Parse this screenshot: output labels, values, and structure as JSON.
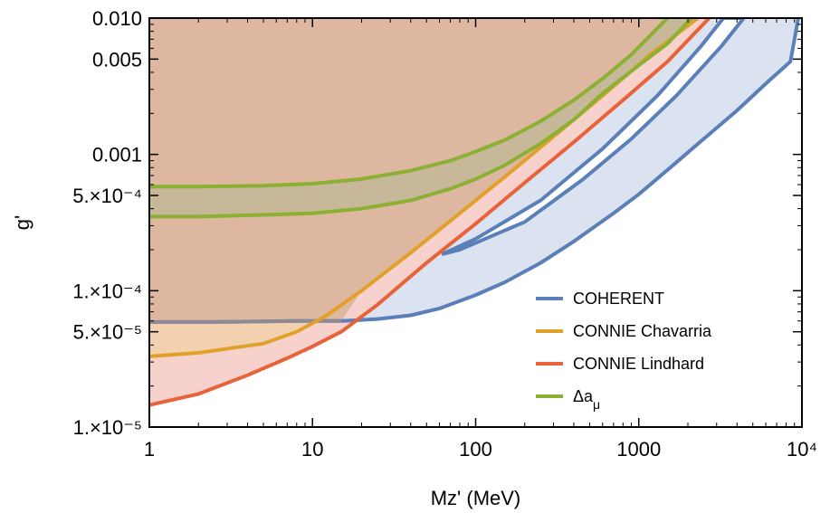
{
  "chart_data": {
    "type": "line",
    "xlabel": "Mz' (MeV)",
    "ylabel": "g'",
    "xscale": "log",
    "yscale": "log",
    "xlim": [
      1,
      10000
    ],
    "ylim": [
      1e-05,
      0.01
    ],
    "x_tick_labels": [
      "1",
      "10",
      "100",
      "1000",
      "10⁴"
    ],
    "x_tick_values": [
      1,
      10,
      100,
      1000,
      10000
    ],
    "y_tick_labels": [
      "1.×10⁻⁵",
      "5.×10⁻⁵",
      "1.×10⁻⁴",
      "5.×10⁻⁴",
      "0.001",
      "0.005",
      "0.010"
    ],
    "y_tick_values": [
      1e-05,
      5e-05,
      0.0001,
      0.0005,
      0.001,
      0.005,
      0.01
    ],
    "legend_position": "bottom-right",
    "series": [
      {
        "name": "COHERENT",
        "color": "#5B7FB9",
        "fill": "#DCE3F0",
        "lower": [
          [
            1,
            5.9e-05
          ],
          [
            2.5,
            5.9e-05
          ],
          [
            8,
            6e-05
          ],
          [
            15,
            6e-05
          ],
          [
            25,
            6.2e-05
          ],
          [
            40,
            6.6e-05
          ],
          [
            60,
            7.4e-05
          ],
          [
            100,
            9.3e-05
          ],
          [
            150,
            0.000115
          ],
          [
            250,
            0.00016
          ],
          [
            400,
            0.00023
          ],
          [
            700,
            0.00037
          ],
          [
            1000,
            0.00051
          ],
          [
            1500,
            0.00077
          ],
          [
            2500,
            0.0013
          ],
          [
            4000,
            0.0021
          ],
          [
            6000,
            0.0033
          ],
          [
            8500,
            0.0048
          ],
          [
            9500,
            0.01
          ]
        ],
        "upper": [
          [
            62,
            0.000185
          ],
          [
            80,
            0.00021
          ],
          [
            100,
            0.00024
          ],
          [
            150,
            0.00032
          ],
          [
            250,
            0.00048
          ],
          [
            400,
            0.00075
          ],
          [
            600,
            0.00112
          ],
          [
            900,
            0.00178
          ],
          [
            1300,
            0.0027
          ],
          [
            1800,
            0.0042
          ],
          [
            2400,
            0.0063
          ],
          [
            2900,
            0.01
          ]
        ],
        "island": [
          [
            62,
            0.000185
          ],
          [
            100,
            0.00024
          ],
          [
            250,
            0.00046
          ],
          [
            600,
            0.0011
          ],
          [
            1300,
            0.0027
          ],
          [
            2400,
            0.0062
          ],
          [
            3300,
            0.01
          ],
          [
            4400,
            0.01
          ],
          [
            3200,
            0.0062
          ],
          [
            1700,
            0.0027
          ],
          [
            900,
            0.0013
          ],
          [
            450,
            0.00065
          ],
          [
            200,
            0.00032
          ],
          [
            80,
            0.0002
          ],
          [
            62,
            0.000185
          ]
        ]
      },
      {
        "name": "CONNIE Chavarria",
        "color": "#E0A02A",
        "fill": "#F3D0B0",
        "values": [
          [
            1,
            3.3e-05
          ],
          [
            2,
            3.5e-05
          ],
          [
            5,
            4.1e-05
          ],
          [
            8,
            5e-05
          ],
          [
            12,
            6.5e-05
          ],
          [
            20,
            0.0001
          ],
          [
            40,
            0.00019
          ],
          [
            80,
            0.00037
          ],
          [
            150,
            0.00068
          ],
          [
            300,
            0.00135
          ],
          [
            600,
            0.0027
          ],
          [
            1200,
            0.0055
          ],
          [
            2300,
            0.01
          ]
        ]
      },
      {
        "name": "CONNIE Lindhard",
        "color": "#E8623A",
        "fill": "#F7D2CC",
        "values": [
          [
            1,
            1.45e-05
          ],
          [
            2,
            1.75e-05
          ],
          [
            4,
            2.4e-05
          ],
          [
            7,
            3.2e-05
          ],
          [
            10,
            3.9e-05
          ],
          [
            15,
            5e-05
          ],
          [
            25,
            7.9e-05
          ],
          [
            50,
            0.00016
          ],
          [
            100,
            0.00031
          ],
          [
            200,
            0.00062
          ],
          [
            400,
            0.00123
          ],
          [
            800,
            0.0025
          ],
          [
            1500,
            0.0048
          ],
          [
            2700,
            0.01
          ]
        ]
      },
      {
        "name": "Δa",
        "name_subscript": "μ",
        "color": "#8BB033",
        "fill": "#C7B89A",
        "upper": [
          [
            1,
            0.00058
          ],
          [
            2,
            0.00058
          ],
          [
            5,
            0.00059
          ],
          [
            10,
            0.00061
          ],
          [
            20,
            0.00066
          ],
          [
            40,
            0.00076
          ],
          [
            70,
            0.0009
          ],
          [
            100,
            0.00105
          ],
          [
            150,
            0.00127
          ],
          [
            250,
            0.00175
          ],
          [
            400,
            0.0025
          ],
          [
            600,
            0.0036
          ],
          [
            900,
            0.0054
          ],
          [
            1500,
            0.01
          ]
        ],
        "lower": [
          [
            1,
            0.00035
          ],
          [
            2,
            0.00035
          ],
          [
            5,
            0.00036
          ],
          [
            10,
            0.00037
          ],
          [
            20,
            0.0004
          ],
          [
            40,
            0.00046
          ],
          [
            70,
            0.00056
          ],
          [
            100,
            0.00066
          ],
          [
            150,
            0.00083
          ],
          [
            250,
            0.0012
          ],
          [
            400,
            0.0018
          ],
          [
            600,
            0.0028
          ],
          [
            1000,
            0.0045
          ],
          [
            1500,
            0.0065
          ],
          [
            2100,
            0.01
          ]
        ]
      }
    ],
    "excluded_region": {
      "color": "#DDB79F",
      "upper_edge_at_y": 0.01
    }
  }
}
